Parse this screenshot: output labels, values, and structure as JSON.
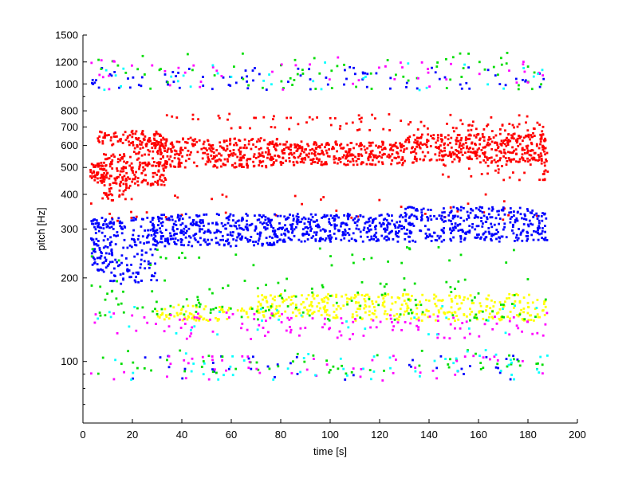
{
  "chart_data": {
    "type": "scatter",
    "title": "",
    "xlabel": "time [s]",
    "ylabel": "pitch [Hz]",
    "xlim": [
      0,
      200
    ],
    "ylim": [
      60,
      1500
    ],
    "yscale": "log",
    "grid": false,
    "x_ticks": [
      0,
      20,
      40,
      60,
      80,
      100,
      120,
      140,
      160,
      180,
      200
    ],
    "y_ticks": [
      100,
      200,
      300,
      400,
      500,
      600,
      700,
      800,
      1000,
      1200,
      1500
    ],
    "series": [
      {
        "color": "#ff0000",
        "bands": [
          {
            "t": [
              3,
              10
            ],
            "p": [
              440,
              520
            ],
            "points": 60
          },
          {
            "t": [
              8,
              20
            ],
            "p": [
              380,
              560
            ],
            "points": 110
          },
          {
            "t": [
              20,
              34
            ],
            "p": [
              430,
              640
            ],
            "points": 130
          },
          {
            "t": [
              6,
              32
            ],
            "p": [
              600,
              680
            ],
            "points": 80
          },
          {
            "t": [
              30,
              80
            ],
            "p": [
              500,
              640
            ],
            "points": 320
          },
          {
            "t": [
              80,
              130
            ],
            "p": [
              510,
              620
            ],
            "points": 300
          },
          {
            "t": [
              130,
              188
            ],
            "p": [
              520,
              660
            ],
            "points": 340
          },
          {
            "t": [
              145,
              188
            ],
            "p": [
              450,
              720
            ],
            "points": 110
          },
          {
            "t": [
              30,
              188
            ],
            "p": [
              680,
              780
            ],
            "points": 70
          },
          {
            "t": [
              3,
              188
            ],
            "p": [
              320,
              400
            ],
            "points": 40
          }
        ]
      },
      {
        "color": "#0000ff",
        "bands": [
          {
            "t": [
              3,
              12
            ],
            "p": [
              210,
              330
            ],
            "points": 90
          },
          {
            "t": [
              10,
              30
            ],
            "p": [
              190,
              330
            ],
            "points": 140
          },
          {
            "t": [
              28,
              80
            ],
            "p": [
              260,
              340
            ],
            "points": 340
          },
          {
            "t": [
              80,
              130
            ],
            "p": [
              270,
              340
            ],
            "points": 300
          },
          {
            "t": [
              130,
              188
            ],
            "p": [
              270,
              360
            ],
            "points": 330
          },
          {
            "t": [
              3,
              188
            ],
            "p": [
              950,
              1150
            ],
            "points": 90
          },
          {
            "t": [
              5,
              188
            ],
            "p": [
              85,
              105
            ],
            "points": 40
          }
        ]
      },
      {
        "color": "#ffff00",
        "bands": [
          {
            "t": [
              70,
              100
            ],
            "p": [
              145,
              175
            ],
            "points": 110
          },
          {
            "t": [
              100,
              188
            ],
            "p": [
              140,
              175
            ],
            "points": 260
          },
          {
            "t": [
              30,
              70
            ],
            "p": [
              140,
              160
            ],
            "points": 70
          }
        ]
      },
      {
        "color": "#00dd00",
        "bands": [
          {
            "t": [
              3,
              188
            ],
            "p": [
              140,
              200
            ],
            "points": 130
          },
          {
            "t": [
              3,
              188
            ],
            "p": [
              950,
              1300
            ],
            "points": 70
          },
          {
            "t": [
              3,
              188
            ],
            "p": [
              90,
              110
            ],
            "points": 60
          },
          {
            "t": [
              3,
              188
            ],
            "p": [
              220,
              260
            ],
            "points": 30
          }
        ]
      },
      {
        "color": "#ff00ff",
        "bands": [
          {
            "t": [
              3,
              188
            ],
            "p": [
              120,
              150
            ],
            "points": 120
          },
          {
            "t": [
              3,
              188
            ],
            "p": [
              950,
              1250
            ],
            "points": 50
          },
          {
            "t": [
              3,
              188
            ],
            "p": [
              85,
              105
            ],
            "points": 50
          }
        ]
      },
      {
        "color": "#00ffff",
        "bands": [
          {
            "t": [
              3,
              188
            ],
            "p": [
              85,
              110
            ],
            "points": 50
          },
          {
            "t": [
              3,
              188
            ],
            "p": [
              950,
              1200
            ],
            "points": 30
          },
          {
            "t": [
              3,
              188
            ],
            "p": [
              125,
              160
            ],
            "points": 30
          }
        ]
      }
    ]
  }
}
